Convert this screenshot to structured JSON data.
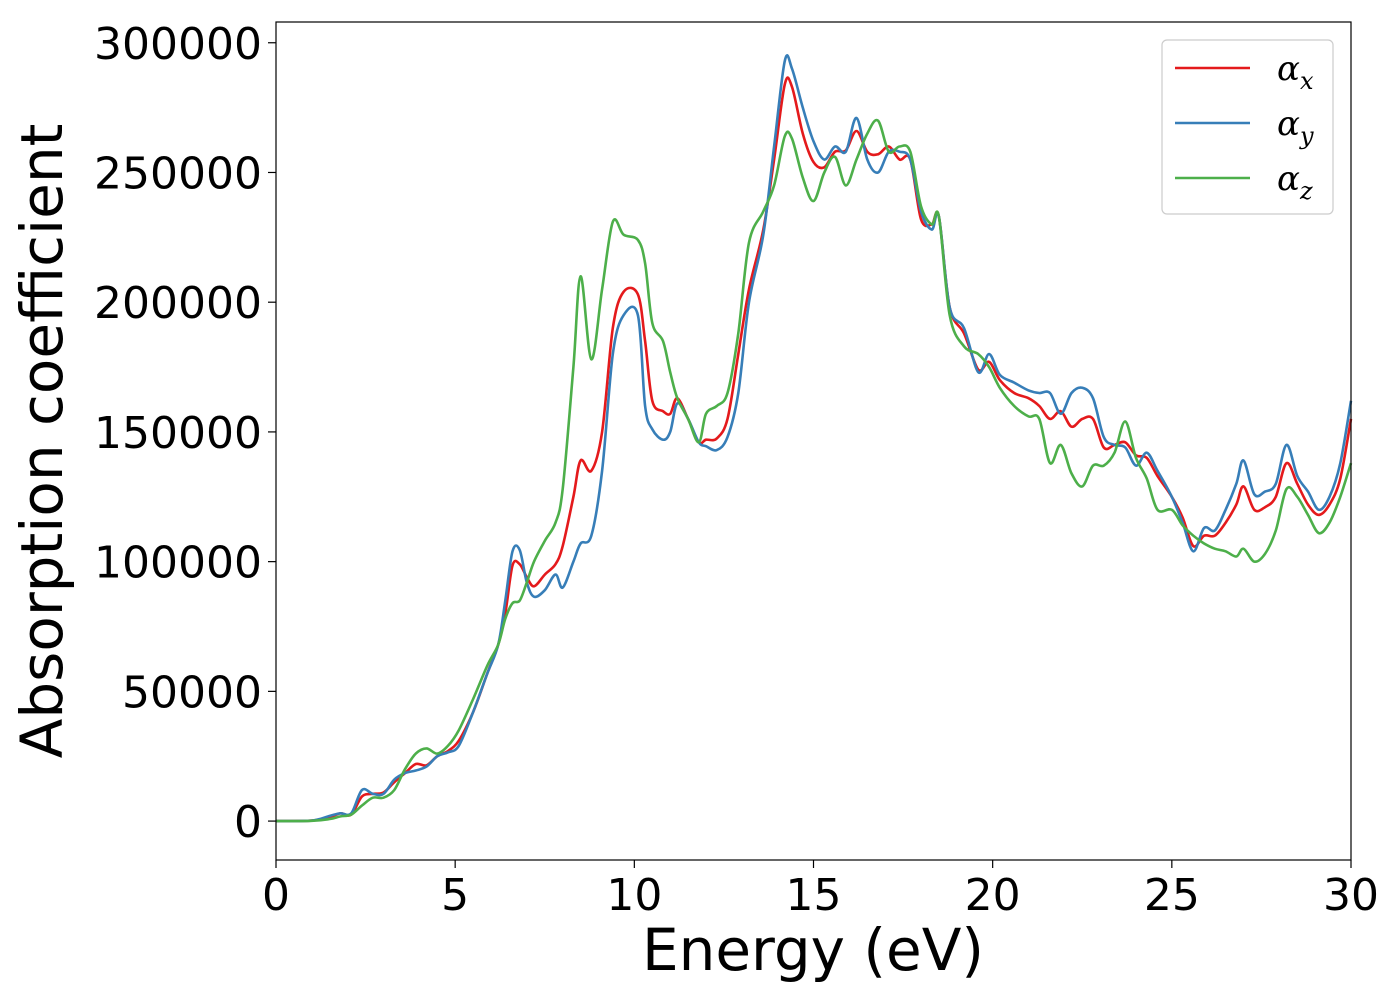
{
  "chart_data": {
    "type": "line",
    "title": "",
    "xlabel": "Energy (eV)",
    "ylabel": "Absorption coefficient",
    "xlim": [
      0,
      30
    ],
    "ylim": [
      -15000,
      308000
    ],
    "xticks": [
      0,
      5,
      10,
      15,
      20,
      25,
      30
    ],
    "xtick_labels": [
      "0",
      "5",
      "10",
      "15",
      "20",
      "25",
      "30"
    ],
    "yticks": [
      0,
      50000,
      100000,
      150000,
      200000,
      250000,
      300000
    ],
    "ytick_labels": [
      "0",
      "50000",
      "100000",
      "150000",
      "200000",
      "250000",
      "300000"
    ],
    "grid": false,
    "legend_position": "top-right",
    "series": [
      {
        "name": "α_x",
        "label_base": "α",
        "label_sub": "x",
        "color": "#e41a1c",
        "points": [
          [
            0,
            0
          ],
          [
            1,
            200
          ],
          [
            1.5,
            1500
          ],
          [
            1.8,
            3000
          ],
          [
            2.1,
            2500
          ],
          [
            2.4,
            9500
          ],
          [
            2.7,
            10500
          ],
          [
            3.0,
            11000
          ],
          [
            3.3,
            15000
          ],
          [
            3.6,
            18500
          ],
          [
            3.9,
            22000
          ],
          [
            4.2,
            21500
          ],
          [
            4.5,
            25000
          ],
          [
            4.8,
            27000
          ],
          [
            5.1,
            31000
          ],
          [
            5.5,
            42000
          ],
          [
            5.9,
            57000
          ],
          [
            6.2,
            68000
          ],
          [
            6.4,
            80000
          ],
          [
            6.6,
            98500
          ],
          [
            6.8,
            99000
          ],
          [
            7.0,
            94000
          ],
          [
            7.2,
            90500
          ],
          [
            7.5,
            95000
          ],
          [
            7.8,
            99000
          ],
          [
            8.0,
            106000
          ],
          [
            8.3,
            125000
          ],
          [
            8.5,
            139000
          ],
          [
            8.8,
            135000
          ],
          [
            9.1,
            150000
          ],
          [
            9.4,
            190000
          ],
          [
            9.7,
            204000
          ],
          [
            10.1,
            203000
          ],
          [
            10.3,
            185000
          ],
          [
            10.5,
            162000
          ],
          [
            10.8,
            158000
          ],
          [
            11.0,
            157000
          ],
          [
            11.2,
            163000
          ],
          [
            11.5,
            155000
          ],
          [
            11.8,
            146000
          ],
          [
            12.0,
            147000
          ],
          [
            12.3,
            147500
          ],
          [
            12.6,
            155000
          ],
          [
            12.9,
            180000
          ],
          [
            13.2,
            205000
          ],
          [
            13.6,
            228000
          ],
          [
            13.9,
            255000
          ],
          [
            14.2,
            284000
          ],
          [
            14.4,
            283000
          ],
          [
            14.7,
            265000
          ],
          [
            15.0,
            254000
          ],
          [
            15.3,
            252000
          ],
          [
            15.6,
            258000
          ],
          [
            15.9,
            258500
          ],
          [
            16.2,
            266000
          ],
          [
            16.5,
            258000
          ],
          [
            16.8,
            257000
          ],
          [
            17.1,
            260000
          ],
          [
            17.4,
            255000
          ],
          [
            17.7,
            255000
          ],
          [
            18.0,
            232000
          ],
          [
            18.3,
            230000
          ],
          [
            18.5,
            233000
          ],
          [
            18.8,
            198000
          ],
          [
            19.2,
            188000
          ],
          [
            19.6,
            174000
          ],
          [
            19.9,
            177000
          ],
          [
            20.2,
            170000
          ],
          [
            20.6,
            165000
          ],
          [
            21.0,
            163000
          ],
          [
            21.3,
            160000
          ],
          [
            21.6,
            155000
          ],
          [
            21.9,
            158000
          ],
          [
            22.2,
            152000
          ],
          [
            22.5,
            155000
          ],
          [
            22.8,
            155000
          ],
          [
            23.1,
            144000
          ],
          [
            23.4,
            145000
          ],
          [
            23.7,
            146000
          ],
          [
            24.0,
            141000
          ],
          [
            24.3,
            140000
          ],
          [
            24.6,
            133000
          ],
          [
            25.0,
            125000
          ],
          [
            25.3,
            117000
          ],
          [
            25.6,
            106000
          ],
          [
            25.9,
            110000
          ],
          [
            26.2,
            110000
          ],
          [
            26.5,
            115000
          ],
          [
            26.8,
            122000
          ],
          [
            27.0,
            129000
          ],
          [
            27.3,
            120000
          ],
          [
            27.6,
            121000
          ],
          [
            27.9,
            125000
          ],
          [
            28.2,
            138000
          ],
          [
            28.5,
            130000
          ],
          [
            28.8,
            122000
          ],
          [
            29.1,
            118000
          ],
          [
            29.4,
            122000
          ],
          [
            29.7,
            132000
          ],
          [
            30,
            155000
          ]
        ]
      },
      {
        "name": "α_y",
        "label_base": "α",
        "label_sub": "y",
        "color": "#377eb8",
        "points": [
          [
            0,
            0
          ],
          [
            1,
            200
          ],
          [
            1.5,
            2000
          ],
          [
            1.8,
            3000
          ],
          [
            2.1,
            3000
          ],
          [
            2.4,
            12000
          ],
          [
            2.7,
            10500
          ],
          [
            3.0,
            10500
          ],
          [
            3.3,
            16000
          ],
          [
            3.6,
            18500
          ],
          [
            3.9,
            19500
          ],
          [
            4.2,
            21000
          ],
          [
            4.5,
            25000
          ],
          [
            4.8,
            26500
          ],
          [
            5.1,
            29000
          ],
          [
            5.5,
            42000
          ],
          [
            5.9,
            57000
          ],
          [
            6.2,
            68000
          ],
          [
            6.4,
            85000
          ],
          [
            6.6,
            104000
          ],
          [
            6.8,
            104500
          ],
          [
            7.0,
            92000
          ],
          [
            7.2,
            86500
          ],
          [
            7.5,
            89000
          ],
          [
            7.8,
            95000
          ],
          [
            8.0,
            90000
          ],
          [
            8.3,
            100000
          ],
          [
            8.5,
            107000
          ],
          [
            8.8,
            110000
          ],
          [
            9.1,
            135000
          ],
          [
            9.4,
            180000
          ],
          [
            9.7,
            195000
          ],
          [
            10.1,
            195000
          ],
          [
            10.3,
            160000
          ],
          [
            10.5,
            151000
          ],
          [
            10.8,
            147000
          ],
          [
            11.0,
            150000
          ],
          [
            11.2,
            161000
          ],
          [
            11.5,
            155000
          ],
          [
            11.8,
            146000
          ],
          [
            12.0,
            144500
          ],
          [
            12.3,
            143000
          ],
          [
            12.6,
            148000
          ],
          [
            12.9,
            165000
          ],
          [
            13.2,
            200000
          ],
          [
            13.6,
            226000
          ],
          [
            13.9,
            260000
          ],
          [
            14.2,
            293000
          ],
          [
            14.4,
            290000
          ],
          [
            14.7,
            275000
          ],
          [
            15.0,
            262000
          ],
          [
            15.3,
            255000
          ],
          [
            15.6,
            260000
          ],
          [
            15.9,
            258000
          ],
          [
            16.2,
            271000
          ],
          [
            16.5,
            255000
          ],
          [
            16.8,
            250000
          ],
          [
            17.1,
            258000
          ],
          [
            17.4,
            258000
          ],
          [
            17.7,
            255000
          ],
          [
            18.0,
            235000
          ],
          [
            18.3,
            228000
          ],
          [
            18.5,
            233000
          ],
          [
            18.8,
            198000
          ],
          [
            19.2,
            190000
          ],
          [
            19.6,
            173000
          ],
          [
            19.9,
            180000
          ],
          [
            20.2,
            172000
          ],
          [
            20.6,
            169000
          ],
          [
            21.0,
            166000
          ],
          [
            21.3,
            165000
          ],
          [
            21.6,
            165000
          ],
          [
            21.9,
            157000
          ],
          [
            22.2,
            165000
          ],
          [
            22.5,
            167000
          ],
          [
            22.8,
            163000
          ],
          [
            23.1,
            148000
          ],
          [
            23.4,
            145000
          ],
          [
            23.7,
            144000
          ],
          [
            24.0,
            137000
          ],
          [
            24.3,
            142000
          ],
          [
            24.6,
            135000
          ],
          [
            25.0,
            125000
          ],
          [
            25.3,
            115000
          ],
          [
            25.6,
            104000
          ],
          [
            25.9,
            113000
          ],
          [
            26.2,
            112000
          ],
          [
            26.5,
            120000
          ],
          [
            26.8,
            130000
          ],
          [
            27.0,
            139000
          ],
          [
            27.3,
            126000
          ],
          [
            27.6,
            127000
          ],
          [
            27.9,
            130000
          ],
          [
            28.2,
            145000
          ],
          [
            28.5,
            133000
          ],
          [
            28.8,
            127000
          ],
          [
            29.1,
            120000
          ],
          [
            29.4,
            125000
          ],
          [
            29.7,
            138000
          ],
          [
            30,
            162000
          ]
        ]
      },
      {
        "name": "α_z",
        "label_base": "α",
        "label_sub": "z",
        "color": "#4daf4a",
        "points": [
          [
            0,
            0
          ],
          [
            1,
            100
          ],
          [
            1.5,
            800
          ],
          [
            1.8,
            1800
          ],
          [
            2.1,
            2500
          ],
          [
            2.4,
            6000
          ],
          [
            2.7,
            9000
          ],
          [
            3.0,
            9000
          ],
          [
            3.3,
            12000
          ],
          [
            3.6,
            20000
          ],
          [
            3.9,
            26000
          ],
          [
            4.2,
            28000
          ],
          [
            4.5,
            26000
          ],
          [
            4.8,
            29000
          ],
          [
            5.1,
            35000
          ],
          [
            5.5,
            47000
          ],
          [
            5.9,
            60000
          ],
          [
            6.2,
            68000
          ],
          [
            6.4,
            78000
          ],
          [
            6.6,
            84000
          ],
          [
            6.8,
            85000
          ],
          [
            7.0,
            92000
          ],
          [
            7.2,
            100000
          ],
          [
            7.5,
            108000
          ],
          [
            7.8,
            115000
          ],
          [
            8.0,
            128000
          ],
          [
            8.3,
            175000
          ],
          [
            8.5,
            210000
          ],
          [
            8.8,
            178000
          ],
          [
            9.1,
            205000
          ],
          [
            9.4,
            231000
          ],
          [
            9.7,
            226000
          ],
          [
            10.1,
            224000
          ],
          [
            10.3,
            215000
          ],
          [
            10.5,
            192000
          ],
          [
            10.8,
            185000
          ],
          [
            11.0,
            173000
          ],
          [
            11.2,
            163000
          ],
          [
            11.5,
            155000
          ],
          [
            11.8,
            146000
          ],
          [
            12.0,
            157000
          ],
          [
            12.3,
            160000
          ],
          [
            12.6,
            165000
          ],
          [
            12.9,
            188000
          ],
          [
            13.2,
            223000
          ],
          [
            13.6,
            235000
          ],
          [
            13.9,
            245000
          ],
          [
            14.2,
            264000
          ],
          [
            14.4,
            263000
          ],
          [
            14.7,
            248000
          ],
          [
            15.0,
            239000
          ],
          [
            15.3,
            250000
          ],
          [
            15.6,
            256000
          ],
          [
            15.9,
            245000
          ],
          [
            16.2,
            255000
          ],
          [
            16.5,
            265000
          ],
          [
            16.8,
            270000
          ],
          [
            17.1,
            258000
          ],
          [
            17.4,
            260000
          ],
          [
            17.7,
            258000
          ],
          [
            18.0,
            237000
          ],
          [
            18.3,
            230000
          ],
          [
            18.5,
            233000
          ],
          [
            18.8,
            195000
          ],
          [
            19.2,
            183000
          ],
          [
            19.6,
            180000
          ],
          [
            19.9,
            175000
          ],
          [
            20.2,
            167000
          ],
          [
            20.6,
            160000
          ],
          [
            21.0,
            156000
          ],
          [
            21.3,
            155000
          ],
          [
            21.6,
            138000
          ],
          [
            21.9,
            145000
          ],
          [
            22.2,
            134000
          ],
          [
            22.5,
            129000
          ],
          [
            22.8,
            137000
          ],
          [
            23.1,
            137000
          ],
          [
            23.4,
            142000
          ],
          [
            23.7,
            154000
          ],
          [
            24.0,
            140000
          ],
          [
            24.3,
            132000
          ],
          [
            24.6,
            120000
          ],
          [
            25.0,
            120000
          ],
          [
            25.3,
            114000
          ],
          [
            25.6,
            110000
          ],
          [
            25.9,
            107000
          ],
          [
            26.2,
            105000
          ],
          [
            26.5,
            104000
          ],
          [
            26.8,
            102000
          ],
          [
            27.0,
            105000
          ],
          [
            27.3,
            100000
          ],
          [
            27.6,
            103000
          ],
          [
            27.9,
            112000
          ],
          [
            28.2,
            128000
          ],
          [
            28.5,
            125000
          ],
          [
            28.8,
            118000
          ],
          [
            29.1,
            111000
          ],
          [
            29.4,
            115000
          ],
          [
            29.7,
            125000
          ],
          [
            30,
            138000
          ]
        ]
      }
    ]
  }
}
